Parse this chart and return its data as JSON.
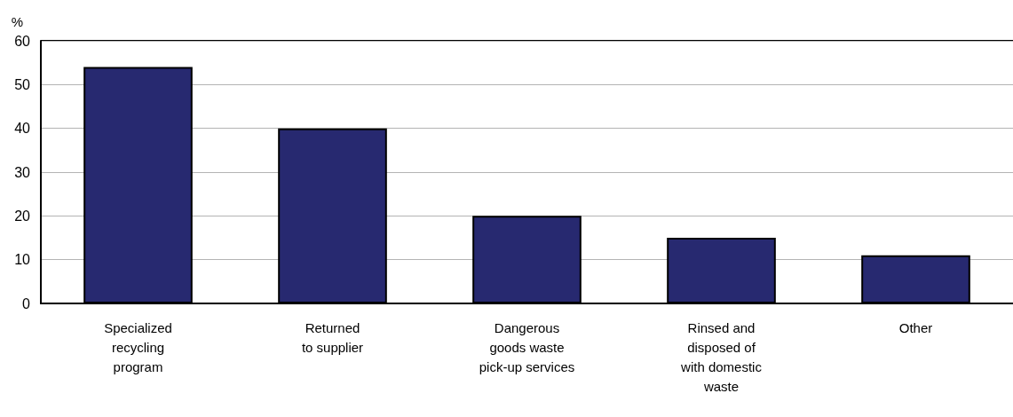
{
  "chart_data": {
    "type": "bar",
    "ylabel": "%",
    "categories": [
      "Specialized\nrecycling\nprogram",
      "Returned\nto supplier",
      "Dangerous\ngoods waste\npick-up services",
      "Rinsed and\ndisposed of\nwith domestic\nwaste",
      "Other"
    ],
    "values": [
      54,
      40,
      20,
      15,
      11
    ],
    "color": "#272970",
    "ylim": [
      0,
      60
    ],
    "yticks": [
      0,
      10,
      20,
      30,
      40,
      50,
      60
    ],
    "grid": "y"
  }
}
